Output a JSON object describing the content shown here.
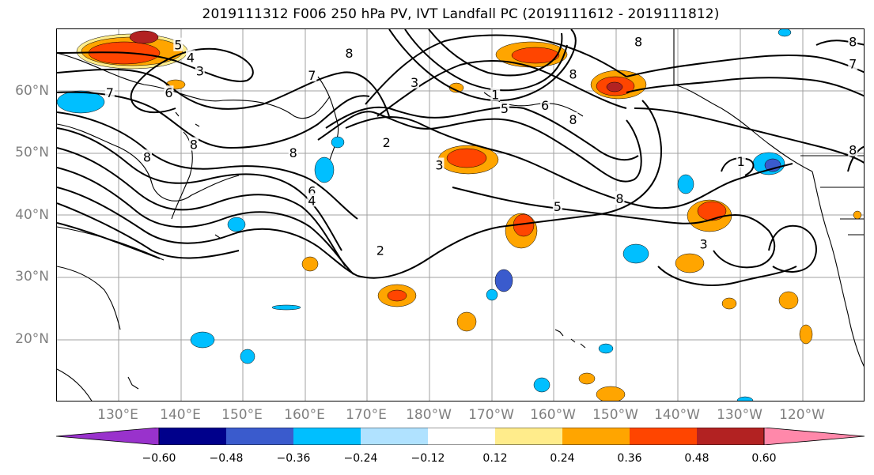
{
  "title": "2019111312 F006 250 hPa PV, IVT Landfall PC (2019111612 - 2019111812)",
  "map": {
    "lat_labels": [
      {
        "text": "60°N",
        "lat": 60
      },
      {
        "text": "50°N",
        "lat": 50
      },
      {
        "text": "40°N",
        "lat": 40
      },
      {
        "text": "30°N",
        "lat": 30
      },
      {
        "text": "20°N",
        "lat": 20
      }
    ],
    "lon_labels": [
      {
        "text": "130°E",
        "lon": 130
      },
      {
        "text": "140°E",
        "lon": 140
      },
      {
        "text": "150°E",
        "lon": 150
      },
      {
        "text": "160°E",
        "lon": 160
      },
      {
        "text": "170°E",
        "lon": 170
      },
      {
        "text": "180°W",
        "lon": 180
      },
      {
        "text": "170°W",
        "lon": 190
      },
      {
        "text": "160°W",
        "lon": 200
      },
      {
        "text": "150°W",
        "lon": 210
      },
      {
        "text": "140°W",
        "lon": 220
      },
      {
        "text": "130°W",
        "lon": 230
      },
      {
        "text": "120°W",
        "lon": 240
      }
    ],
    "extent": {
      "lon_min": 120,
      "lon_max": 250,
      "lat_min": 10,
      "lat_max": 70
    },
    "contour_labels": [
      {
        "text": "5",
        "lon": 139.5,
        "lat": 67.5
      },
      {
        "text": "4",
        "lon": 141.5,
        "lat": 65.5
      },
      {
        "text": "3",
        "lon": 143,
        "lat": 63.3
      },
      {
        "text": "7",
        "lon": 128.5,
        "lat": 59.8
      },
      {
        "text": "6",
        "lon": 138,
        "lat": 59.8
      },
      {
        "text": "7",
        "lon": 161,
        "lat": 62.6
      },
      {
        "text": "8",
        "lon": 167,
        "lat": 66.2
      },
      {
        "text": "3",
        "lon": 177.5,
        "lat": 61.5
      },
      {
        "text": "1",
        "lon": 190.5,
        "lat": 59.5
      },
      {
        "text": "5",
        "lon": 192,
        "lat": 57.3
      },
      {
        "text": "6",
        "lon": 198.5,
        "lat": 57.8
      },
      {
        "text": "8",
        "lon": 203,
        "lat": 62.8
      },
      {
        "text": "8",
        "lon": 213.5,
        "lat": 68
      },
      {
        "text": "8",
        "lon": 203,
        "lat": 55.5
      },
      {
        "text": "8",
        "lon": 134.5,
        "lat": 49.5
      },
      {
        "text": "8",
        "lon": 142,
        "lat": 51.5
      },
      {
        "text": "8",
        "lon": 158,
        "lat": 50.2
      },
      {
        "text": "6",
        "lon": 161,
        "lat": 44
      },
      {
        "text": "4",
        "lon": 161,
        "lat": 42.5
      },
      {
        "text": "2",
        "lon": 173,
        "lat": 51.8
      },
      {
        "text": "3",
        "lon": 181.5,
        "lat": 48.2
      },
      {
        "text": "5",
        "lon": 200.5,
        "lat": 41.5
      },
      {
        "text": "8",
        "lon": 210.5,
        "lat": 42.8
      },
      {
        "text": "2",
        "lon": 172,
        "lat": 34.5
      },
      {
        "text": "1",
        "lon": 230,
        "lat": 48.8
      },
      {
        "text": "3",
        "lon": 224,
        "lat": 35.5
      },
      {
        "text": "8",
        "lon": 248,
        "lat": 68
      },
      {
        "text": "7",
        "lon": 248,
        "lat": 64.5
      },
      {
        "text": "8",
        "lon": 248,
        "lat": 50.6
      }
    ]
  },
  "colorbar": {
    "colors": [
      "#9932cc",
      "#00008b",
      "#3a5bcd",
      "#00bfff",
      "#b0e2ff",
      "#ffffff",
      "#ffec8b",
      "#ffa500",
      "#ff4500",
      "#b22222",
      "#ff88aa"
    ],
    "ticks": [
      "−0.60",
      "−0.48",
      "−0.36",
      "−0.24",
      "−0.12",
      "0.12",
      "0.24",
      "0.36",
      "0.48",
      "0.60"
    ]
  },
  "shading_colors": {
    "pos_light": "#ffec8b",
    "pos_mid": "#ffa500",
    "pos_strong": "#ff4500",
    "pos_max": "#b22222",
    "neg_light": "#b0e2ff",
    "neg_mid": "#00bfff",
    "neg_strong": "#3a5bcd"
  }
}
